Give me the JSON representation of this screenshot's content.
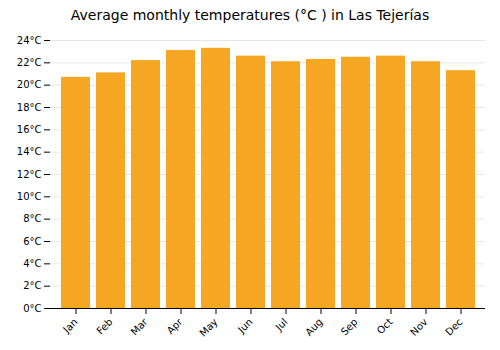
{
  "chart_data": {
    "type": "bar",
    "title": "Average monthly temperatures (°C ) in Las Tejerías",
    "categories": [
      "Jan",
      "Feb",
      "Mar",
      "Apr",
      "May",
      "Jun",
      "Jul",
      "Aug",
      "Sep",
      "Oct",
      "Nov",
      "Dec"
    ],
    "values": [
      20.7,
      21.1,
      22.2,
      23.1,
      23.3,
      22.6,
      22.1,
      22.3,
      22.5,
      22.6,
      22.1,
      21.3
    ],
    "color": "#F5A623",
    "ylim": [
      0,
      24
    ],
    "yticks": [
      {
        "value": 0,
        "label": "0°C"
      },
      {
        "value": 2,
        "label": "2°C"
      },
      {
        "value": 4,
        "label": "4°C"
      },
      {
        "value": 6,
        "label": "6°C"
      },
      {
        "value": 8,
        "label": "8°C"
      },
      {
        "value": 10,
        "label": "10°C"
      },
      {
        "value": 12,
        "label": "12°C"
      },
      {
        "value": 14,
        "label": "14°C"
      },
      {
        "value": 16,
        "label": "16°C"
      },
      {
        "value": 18,
        "label": "18°C"
      },
      {
        "value": 20,
        "label": "20°C"
      },
      {
        "value": 22,
        "label": "22°C"
      },
      {
        "value": 24,
        "label": "24°C"
      }
    ],
    "grid": true
  }
}
